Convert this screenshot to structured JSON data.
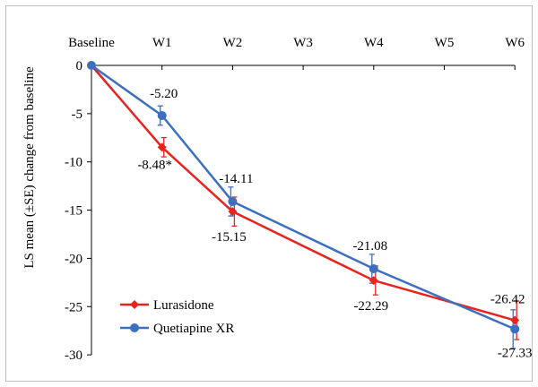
{
  "chart_data": {
    "type": "line",
    "title": "",
    "xlabel": "",
    "ylabel": "LS mean (±SE) change from baseline",
    "categories": [
      "Baseline",
      "W1",
      "W2",
      "W3",
      "W4",
      "W5",
      "W6"
    ],
    "ylim": [
      -30,
      0
    ],
    "y_ticks": [
      "0",
      "-5",
      "-10",
      "-15",
      "-20",
      "-25",
      "-30"
    ],
    "x_axis_position": "top",
    "grid": false,
    "legend_position": "bottom-left",
    "series": [
      {
        "name": "Lurasidone",
        "color": "#e8231e",
        "marker": "diamond",
        "points": [
          {
            "x": "Baseline",
            "y": 0,
            "se": 0,
            "label": ""
          },
          {
            "x": "W1",
            "y": -8.48,
            "se": 1.0,
            "label": "-8.48*"
          },
          {
            "x": "W2",
            "y": -15.15,
            "se": 1.5,
            "label": "-15.15"
          },
          {
            "x": "W4",
            "y": -22.29,
            "se": 1.5,
            "label": "-22.29"
          },
          {
            "x": "W6",
            "y": -26.42,
            "se": 2.0,
            "label": "-26.42"
          }
        ]
      },
      {
        "name": "Quetiapine XR",
        "color": "#3d6fbf",
        "marker": "circle",
        "points": [
          {
            "x": "Baseline",
            "y": 0,
            "se": 0,
            "label": ""
          },
          {
            "x": "W1",
            "y": -5.2,
            "se": 1.0,
            "label": "-5.20"
          },
          {
            "x": "W2",
            "y": -14.11,
            "se": 1.5,
            "label": "-14.11"
          },
          {
            "x": "W4",
            "y": -21.08,
            "se": 1.5,
            "label": "-21.08"
          },
          {
            "x": "W6",
            "y": -27.33,
            "se": 2.0,
            "label": "-27.33"
          }
        ]
      }
    ]
  }
}
